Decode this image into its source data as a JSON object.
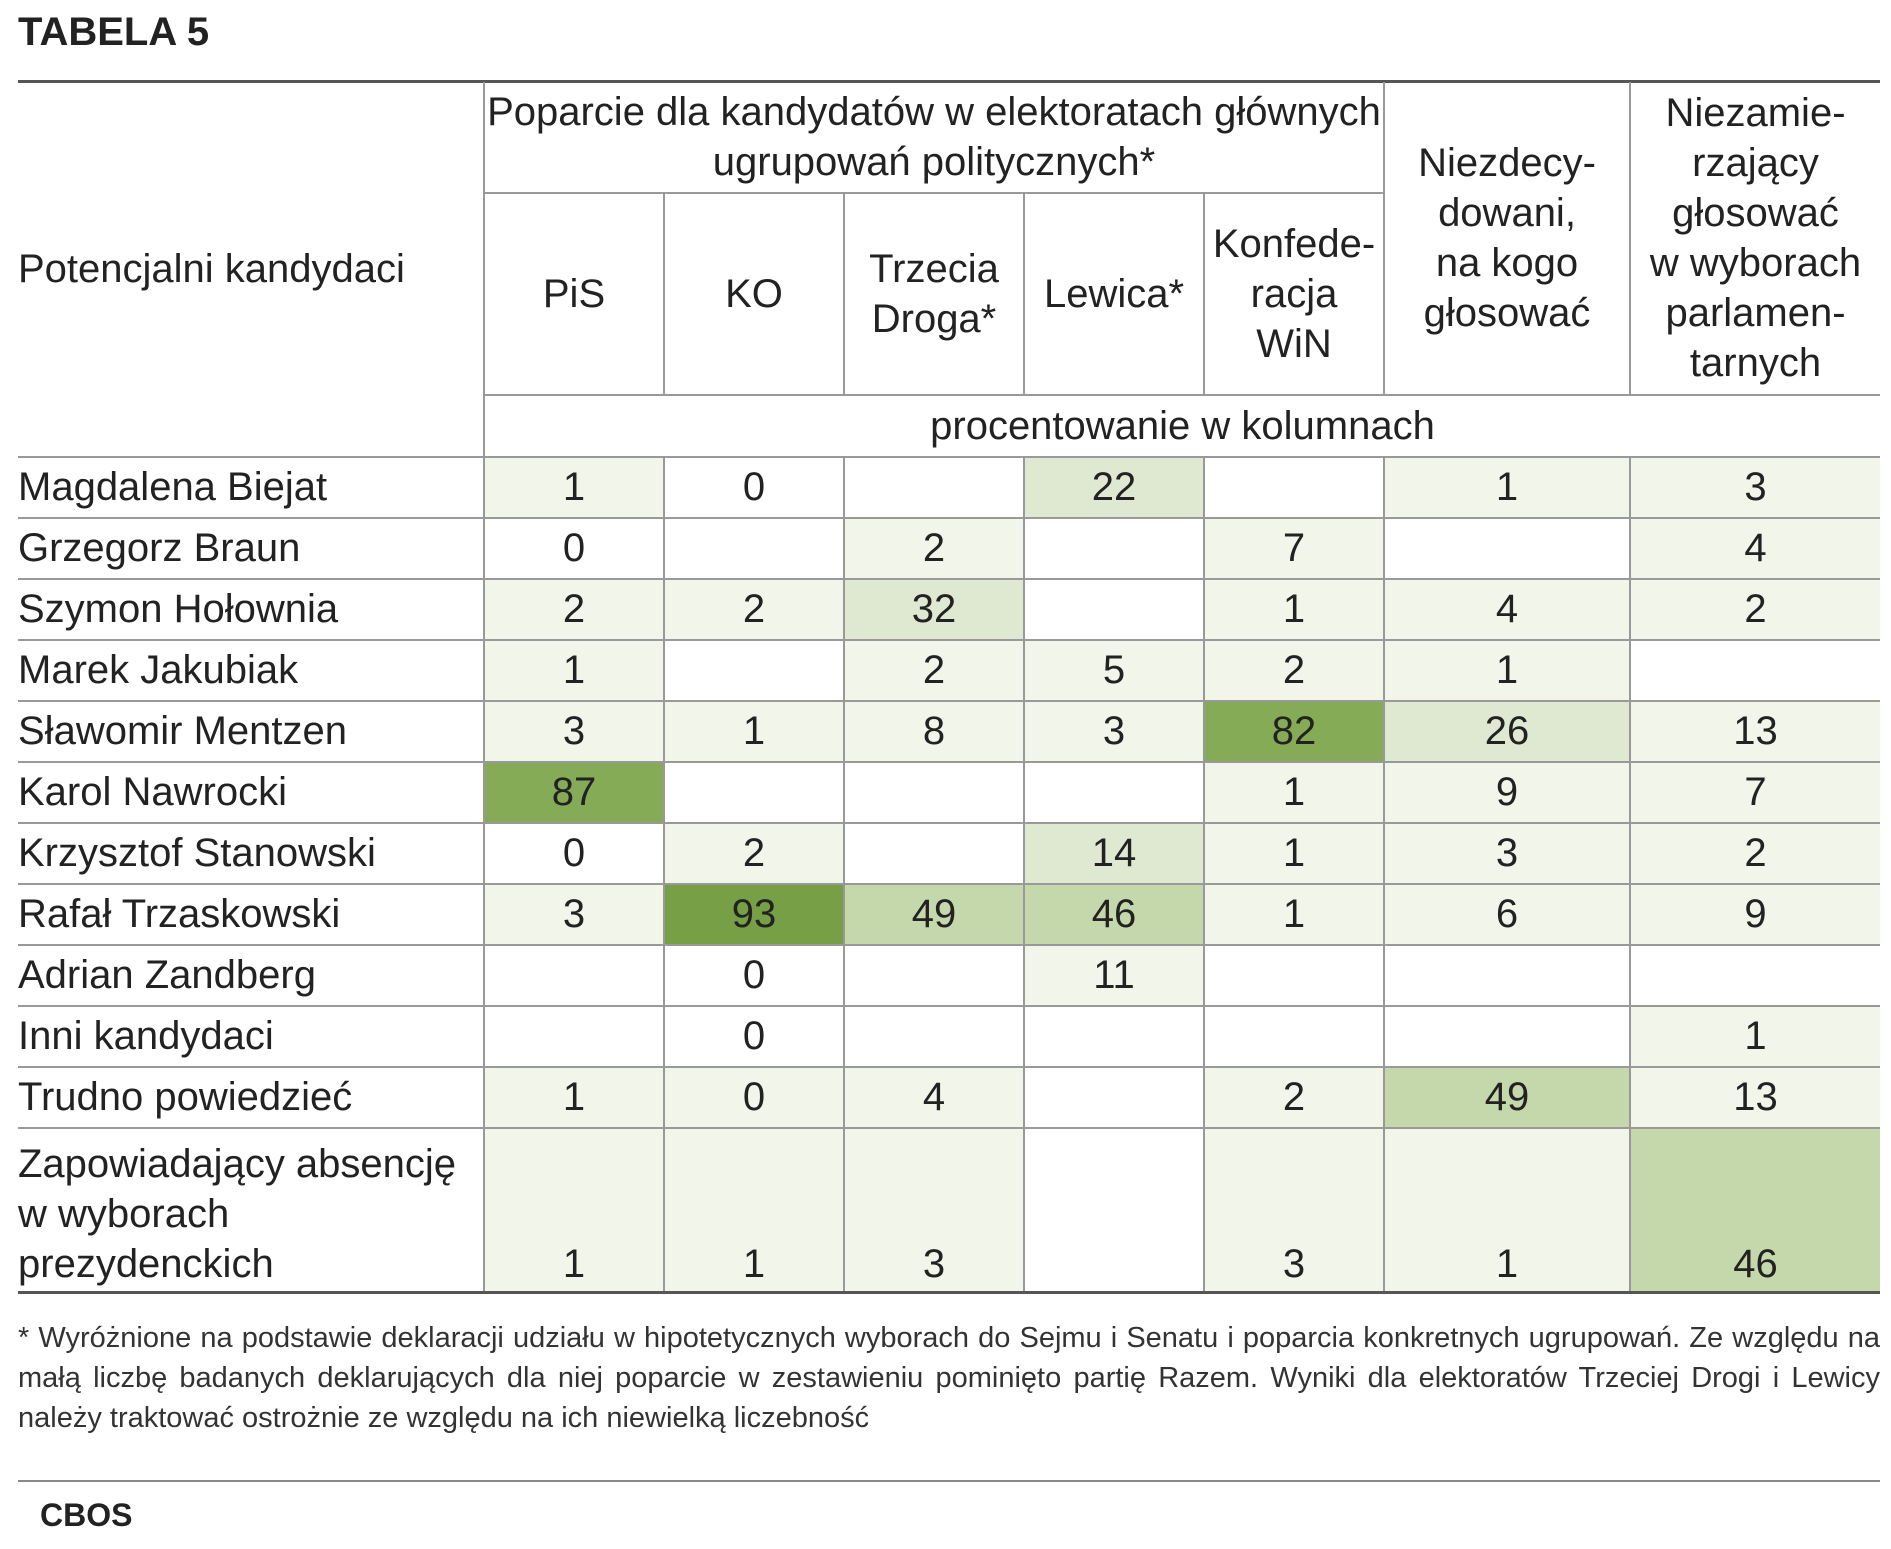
{
  "title": "TABELA 5",
  "header": {
    "corner": "Potencjalni kandydaci",
    "group": "Poparcie dla kandydatów w elektoratach głównych ugrupowań politycznych*",
    "undecided": "Niezdecy-\ndowani,\nna kogo\ngłosować",
    "nonvoters": "Niezamie-\nrzający\ngłosować\nw wyborach\nparlamen-\ntarnych",
    "sub": [
      "PiS",
      "KO",
      "Trzecia\nDroga*",
      "Lewica*",
      "Konfede-\nracja\nWiN"
    ],
    "unit": "procentowanie w kolumnach"
  },
  "colors": {
    "c1": "#f1f5ea",
    "c2": "#dfe9d1",
    "c3": "#c5d8ac",
    "c4": "#86ab57",
    "c5": "#779f45"
  },
  "rows": [
    {
      "name": "Magdalena Biejat",
      "v": [
        "1",
        "0",
        "",
        "22",
        "",
        "1",
        "3"
      ],
      "s": [
        "c1",
        "",
        "",
        "c2",
        "",
        "c1",
        "c1"
      ]
    },
    {
      "name": "Grzegorz Braun",
      "v": [
        "0",
        "",
        "2",
        "",
        "7",
        "",
        "4"
      ],
      "s": [
        "",
        "",
        "c1",
        "",
        "c1",
        "",
        "c1"
      ]
    },
    {
      "name": "Szymon Hołownia",
      "v": [
        "2",
        "2",
        "32",
        "",
        "1",
        "4",
        "2"
      ],
      "s": [
        "c1",
        "c1",
        "c2",
        "",
        "c1",
        "c1",
        "c1"
      ]
    },
    {
      "name": "Marek Jakubiak",
      "v": [
        "1",
        "",
        "2",
        "5",
        "2",
        "1",
        ""
      ],
      "s": [
        "c1",
        "",
        "c1",
        "c1",
        "c1",
        "c1",
        ""
      ]
    },
    {
      "name": "Sławomir Mentzen",
      "v": [
        "3",
        "1",
        "8",
        "3",
        "82",
        "26",
        "13"
      ],
      "s": [
        "c1",
        "c1",
        "c1",
        "c1",
        "c4",
        "c2",
        "c1"
      ]
    },
    {
      "name": "Karol Nawrocki",
      "v": [
        "87",
        "",
        "",
        "",
        "1",
        "9",
        "7"
      ],
      "s": [
        "c4",
        "",
        "",
        "",
        "c1",
        "c1",
        "c1"
      ]
    },
    {
      "name": "Krzysztof Stanowski",
      "v": [
        "0",
        "2",
        "",
        "14",
        "1",
        "3",
        "2"
      ],
      "s": [
        "",
        "c1",
        "",
        "c2",
        "c1",
        "c1",
        "c1"
      ]
    },
    {
      "name": "Rafał Trzaskowski",
      "v": [
        "3",
        "93",
        "49",
        "46",
        "1",
        "6",
        "9"
      ],
      "s": [
        "c1",
        "c5",
        "c3",
        "c3",
        "c1",
        "c1",
        "c1"
      ]
    },
    {
      "name": "Adrian Zandberg",
      "v": [
        "",
        "0",
        "",
        "11",
        "",
        "",
        ""
      ],
      "s": [
        "",
        "",
        "",
        "c1",
        "",
        "",
        ""
      ]
    },
    {
      "name": "Inni kandydaci",
      "v": [
        "",
        "0",
        "",
        "",
        "",
        "",
        "1"
      ],
      "s": [
        "",
        "",
        "",
        "",
        "",
        "",
        "c1"
      ]
    },
    {
      "name": "Trudno powiedzieć",
      "v": [
        "1",
        "0",
        "4",
        "",
        "2",
        "49",
        "13"
      ],
      "s": [
        "c1",
        "c1",
        "c1",
        "",
        "c1",
        "c3",
        "c1"
      ]
    },
    {
      "name": "Zapowiadający absencję\nw wyborach\nprezydenckich",
      "v": [
        "1",
        "1",
        "3",
        "",
        "3",
        "1",
        "46"
      ],
      "s": [
        "c1",
        "c1",
        "c1",
        "",
        "c1",
        "c1",
        "c3"
      ]
    }
  ],
  "footnote": "* Wyróżnione na podstawie deklaracji udziału w hipotetycznych wyborach do Sejmu i Senatu i poparcia konkretnych ugrupowań. Ze względu na małą liczbę badanych deklarujących dla niej poparcie w zestawieniu pominięto partię Razem. Wyniki dla elektoratów Trzeciej Drogi i Lewicy należy traktować ostrożnie ze względu na ich niewielką liczebność",
  "source": "CBOS"
}
